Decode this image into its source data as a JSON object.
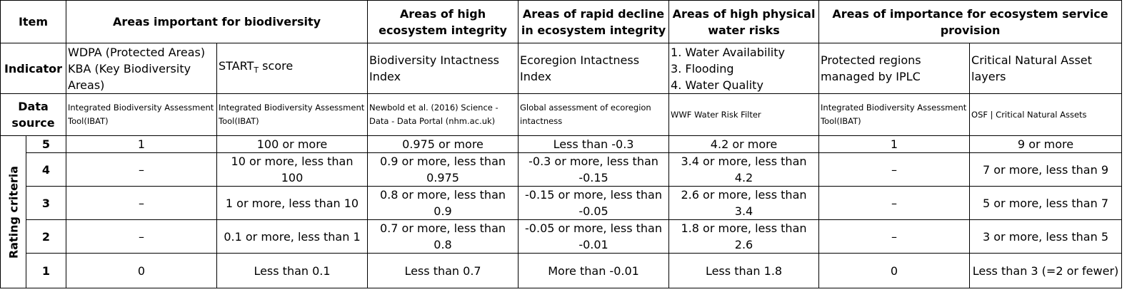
{
  "header": {
    "item": "Item",
    "col_biodiv": "Areas important for biodiversity",
    "col_integrity": "Areas of high ecosystem integrity",
    "col_decline": "Areas of rapid decline in ecosystem integrity",
    "col_water": "Areas of high physical water risks",
    "col_service": "Areas of importance for ecosystem service provision"
  },
  "indicator": {
    "label": "Indicator",
    "wdpa": "WDPA (Protected Areas) KBA (Key Biodiversity Areas)",
    "start_main": "START",
    "start_sub": "T",
    "start_rest": " score",
    "bii": "Biodiversity Intactness Index",
    "eii": "Ecoregion Intactness Index",
    "water_1": "1. Water Availability",
    "water_3": "3. Flooding",
    "water_4": "4. Water Quality",
    "iplc": "Protected regions managed by IPLC",
    "cna": "Critical Natural Asset layers"
  },
  "data_source": {
    "label": "Data source",
    "ibat1": "Integrated Biodiversity Assessment Tool(IBAT)",
    "ibat2": "Integrated Biodiversity Assessment Tool(IBAT)",
    "newbold": "Newbold et al. (2016) Science - Data - Data Portal (nhm.ac.uk)",
    "global": "Global assessment of ecoregion intactness",
    "wwf": "WWF Water Risk Filter",
    "ibat3": "Integrated Biodiversity Assessment Tool(IBAT)",
    "osf": "OSF | Critical Natural Assets"
  },
  "rating_label": "Rating criteria",
  "rows": [
    {
      "level": "5",
      "c1": "1",
      "c2": "100 or more",
      "c3": "0.975 or more",
      "c4": "Less than -0.3",
      "c5": "4.2 or more",
      "c6": "1",
      "c7": "9 or more"
    },
    {
      "level": "4",
      "c1": "–",
      "c2": "10 or more, less than 100",
      "c3": "0.9 or more, less than 0.975",
      "c4": "-0.3 or more, less than -0.15",
      "c5": "3.4 or more, less than 4.2",
      "c6": "–",
      "c7": "7 or more, less than 9"
    },
    {
      "level": "3",
      "c1": "–",
      "c2": "1 or more, less than 10",
      "c3": "0.8 or more, less than 0.9",
      "c4": "-0.15 or more, less than -0.05",
      "c5": "2.6 or more, less than 3.4",
      "c6": "–",
      "c7": "5 or more, less than 7"
    },
    {
      "level": "2",
      "c1": "–",
      "c2": "0.1 or more, less than 1",
      "c3": "0.7 or more, less than 0.8",
      "c4": "-0.05 or more, less than -0.01",
      "c5": "1.8 or more, less than 2.6",
      "c6": "–",
      "c7": "3 or more, less than 5"
    },
    {
      "level": "1",
      "c1": "0",
      "c2": "Less than 0.1",
      "c3": "Less than 0.7",
      "c4": "More than -0.01",
      "c5": "Less than 1.8",
      "c6": "0",
      "c7": "Less than 3 (=2 or fewer)"
    }
  ]
}
